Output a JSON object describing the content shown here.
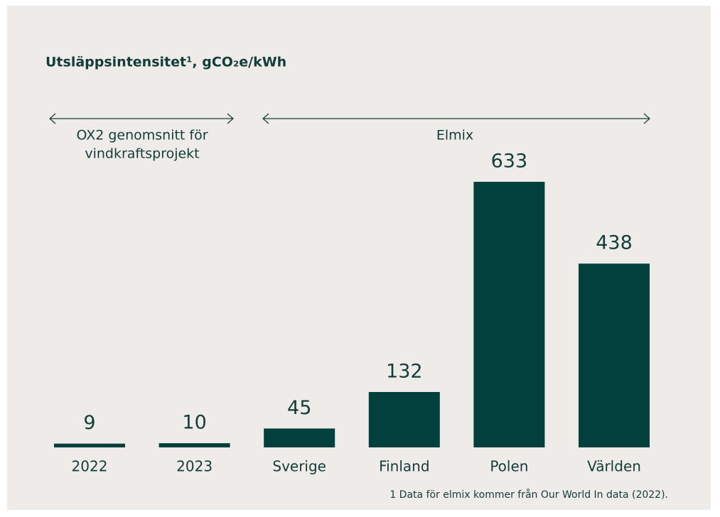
{
  "chart_data": {
    "type": "bar",
    "title": "Utsläppsintensitet¹, gCO₂e/kWh",
    "categories": [
      "2022",
      "2023",
      "Sverige",
      "Finland",
      "Polen",
      "Världen"
    ],
    "values": [
      9,
      10,
      45,
      132,
      633,
      438
    ],
    "color": "#01403c",
    "groups": [
      {
        "label": [
          "OX2 genomsnitt för",
          "vindkraftsprojekt"
        ]
      },
      {
        "label": [
          "Elmix"
        ]
      }
    ],
    "footnote": "1 Data för elmix kommer från Our World In data (2022)."
  }
}
